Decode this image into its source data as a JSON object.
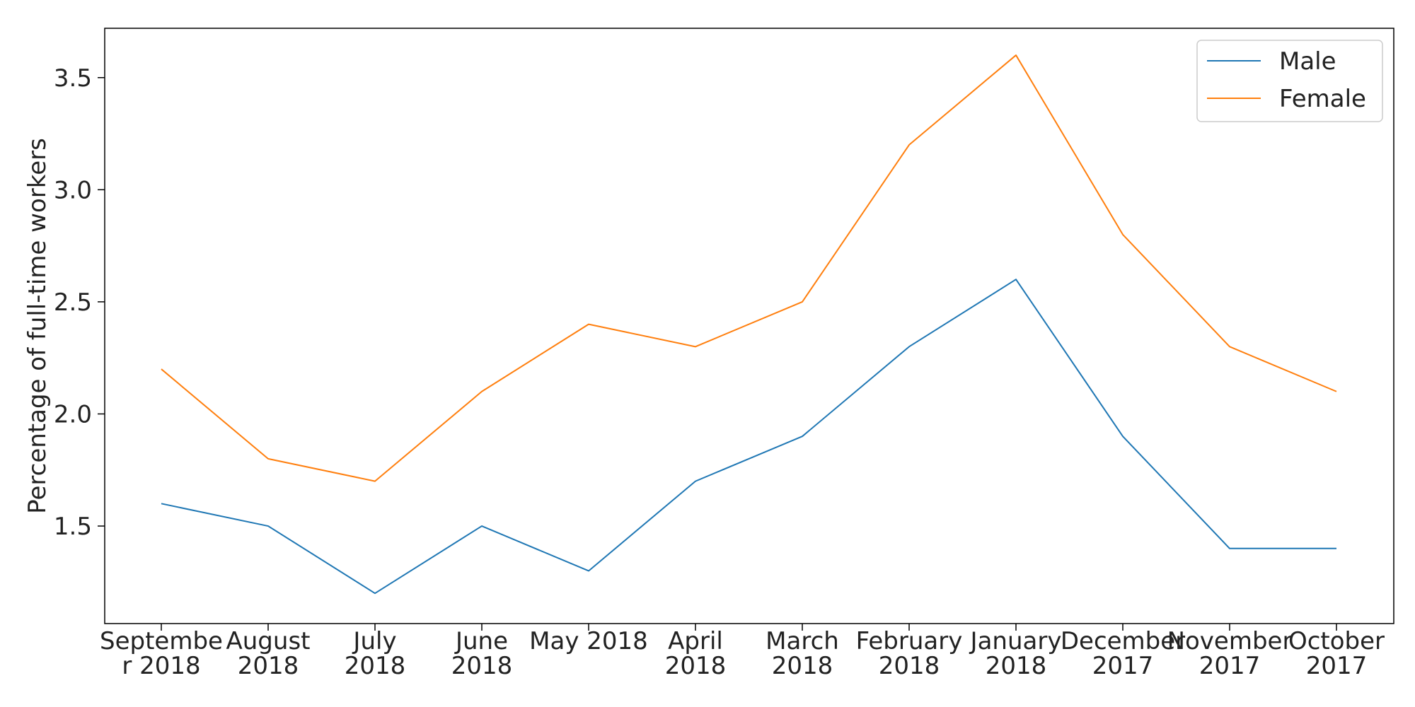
{
  "chart_data": {
    "type": "line",
    "title": "",
    "xlabel": "",
    "ylabel": "Percentage of full-time workers",
    "categories": [
      [
        "Septembe",
        "r 2018"
      ],
      [
        "August",
        "2018"
      ],
      [
        "July",
        "2018"
      ],
      [
        "June",
        "2018"
      ],
      [
        "May 2018"
      ],
      [
        "April",
        "2018"
      ],
      [
        "March",
        "2018"
      ],
      [
        "February",
        "2018"
      ],
      [
        "January",
        "2018"
      ],
      [
        "December",
        "2017"
      ],
      [
        "November",
        "2017"
      ],
      [
        "October",
        "2017"
      ]
    ],
    "series": [
      {
        "name": "Male",
        "color": "#1f77b4",
        "values": [
          1.6,
          1.5,
          1.2,
          1.5,
          1.3,
          1.7,
          1.9,
          2.3,
          2.6,
          1.9,
          1.4,
          1.4
        ]
      },
      {
        "name": "Female",
        "color": "#ff7f0e",
        "values": [
          2.2,
          1.8,
          1.7,
          2.1,
          2.4,
          2.3,
          2.5,
          3.2,
          3.6,
          2.8,
          2.3,
          2.1
        ]
      }
    ],
    "ylim": [
      1.065,
      3.72
    ],
    "yticks": [
      "1.5",
      "2.0",
      "2.5",
      "3.0",
      "3.5"
    ],
    "grid": false,
    "legend_position": "top-right"
  }
}
